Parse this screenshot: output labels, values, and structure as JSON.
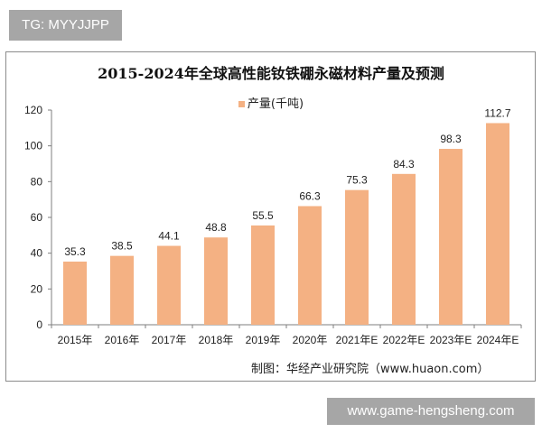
{
  "watermark_top": "TG: MYYJJPP",
  "watermark_bottom": "www.game-hengsheng.com",
  "source": "制图：华经产业研究院（www.huaon.com）",
  "chart_data": {
    "type": "bar",
    "title": "2015-2024年全球高性能钕铁硼永磁材料产量及预测",
    "legend_position": "top",
    "categories": [
      "2015年",
      "2016年",
      "2017年",
      "2018年",
      "2019年",
      "2020年",
      "2021年E",
      "2022年E",
      "2023年E",
      "2024年E"
    ],
    "series": [
      {
        "name": "产量(千吨)",
        "values": [
          35.3,
          38.5,
          44.1,
          48.8,
          55.5,
          66.3,
          75.3,
          84.3,
          98.3,
          112.7
        ],
        "color": "#f4b183"
      }
    ],
    "data_labels": [
      "35.3",
      "38.5",
      "44.1",
      "48.8",
      "55.5",
      "66.3",
      "75.3",
      "84.3",
      "98.3",
      "112.7"
    ],
    "yticks": [
      "0",
      "20",
      "40",
      "60",
      "80",
      "100",
      "120"
    ],
    "ylim": [
      0,
      120
    ],
    "grid": false
  }
}
